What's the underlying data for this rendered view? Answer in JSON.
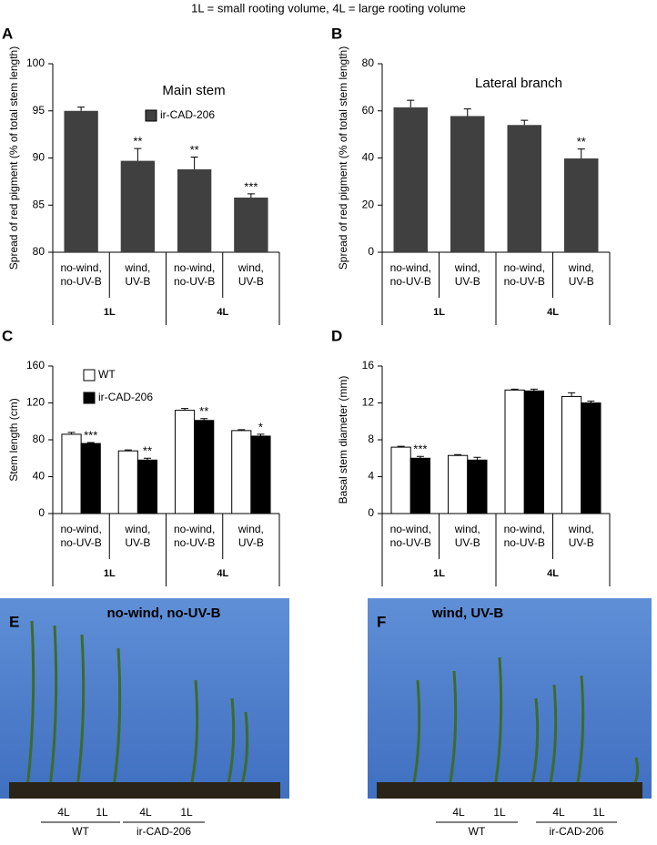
{
  "header": "1L = small rooting volume, 4L = large rooting volume",
  "chart_data": [
    {
      "type": "bar",
      "panel": "A",
      "title": "Main stem",
      "ylabel": "Spread of red pigment (% of total stem length)",
      "categories": [
        [
          "no-wind,",
          "no-UV-B"
        ],
        [
          "wind,",
          "UV-B"
        ],
        [
          "no-wind,",
          "no-UV-B"
        ],
        [
          "wind,",
          "UV-B"
        ]
      ],
      "groups": [
        "1L",
        "4L"
      ],
      "legend": "upper center",
      "series": [
        {
          "name": "ir-CAD-206",
          "color": "#404040",
          "values": [
            95,
            89.7,
            88.8,
            85.8
          ],
          "errors": [
            0.4,
            1.3,
            1.3,
            0.4
          ],
          "stars": [
            null,
            "**",
            "**",
            "***"
          ]
        }
      ],
      "ylim": [
        80,
        100
      ],
      "yticks": [
        80,
        85,
        90,
        95,
        100
      ]
    },
    {
      "type": "bar",
      "panel": "B",
      "title": "Lateral branch",
      "ylabel": "Spread of red pigment (% of total stem length)",
      "categories": [
        [
          "no-wind,",
          "no-UV-B"
        ],
        [
          "wind,",
          "UV-B"
        ],
        [
          "no-wind,",
          "no-UV-B"
        ],
        [
          "wind,",
          "UV-B"
        ]
      ],
      "groups": [
        "1L",
        "4L"
      ],
      "series": [
        {
          "color": "#404040",
          "values": [
            61.5,
            57.8,
            54,
            39.8
          ],
          "errors": [
            3,
            3,
            2,
            4
          ],
          "stars": [
            null,
            null,
            null,
            "**"
          ]
        }
      ],
      "ylim": [
        0,
        80
      ],
      "yticks": [
        0,
        20,
        40,
        60,
        80
      ]
    },
    {
      "type": "bar",
      "panel": "C",
      "ylabel": "Stem length (cm)",
      "categories": [
        [
          "no-wind,",
          "no-UV-B"
        ],
        [
          "wind,",
          "UV-B"
        ],
        [
          "no-wind,",
          "no-UV-B"
        ],
        [
          "wind,",
          "UV-B"
        ]
      ],
      "groups": [
        "1L",
        "4L"
      ],
      "legend": "upper left",
      "series": [
        {
          "name": "WT",
          "color": "#ffffff",
          "values": [
            86,
            68,
            112,
            90
          ],
          "errors": [
            2,
            1,
            2,
            1
          ],
          "stars": [
            null,
            null,
            null,
            null
          ]
        },
        {
          "name": "ir-CAD-206",
          "color": "#000000",
          "values": [
            76,
            58,
            101,
            84
          ],
          "errors": [
            1,
            2,
            2,
            2
          ],
          "stars": [
            "***",
            "**",
            "**",
            "*"
          ]
        }
      ],
      "ylim": [
        0,
        160
      ],
      "yticks": [
        0,
        40,
        80,
        120,
        160
      ]
    },
    {
      "type": "bar",
      "panel": "D",
      "ylabel": "Basal stem diameter (mm)",
      "categories": [
        [
          "no-wind,",
          "no-UV-B"
        ],
        [
          "wind,",
          "UV-B"
        ],
        [
          "no-wind,",
          "no-UV-B"
        ],
        [
          "wind,",
          "UV-B"
        ]
      ],
      "groups": [
        "1L",
        "4L"
      ],
      "series": [
        {
          "color": "#ffffff",
          "values": [
            7.2,
            6.3,
            13.4,
            12.7
          ],
          "errors": [
            0.1,
            0.1,
            0.1,
            0.4
          ],
          "stars": [
            null,
            null,
            null,
            null
          ]
        },
        {
          "color": "#000000",
          "values": [
            6,
            5.8,
            13.3,
            12
          ],
          "errors": [
            0.2,
            0.3,
            0.2,
            0.2
          ],
          "stars": [
            "***",
            null,
            null,
            null
          ]
        }
      ],
      "ylim": [
        0,
        16
      ],
      "yticks": [
        0,
        4,
        8,
        12,
        16
      ]
    }
  ],
  "photos": [
    {
      "panel": "E",
      "label": "no-wind, no-UV-B",
      "pots": [
        "4L",
        "1L",
        "4L",
        "1L"
      ],
      "groups": [
        "WT",
        "ir-CAD-206"
      ]
    },
    {
      "panel": "F",
      "label": "wind, UV-B",
      "pots": [
        "4L",
        "1L",
        "4L",
        "1L"
      ],
      "groups": [
        "WT",
        "ir-CAD-206"
      ]
    }
  ]
}
